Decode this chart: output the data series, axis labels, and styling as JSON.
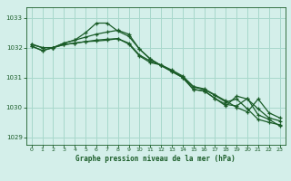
{
  "title": "Graphe pression niveau de la mer (hPa)",
  "bg_color": "#d4efea",
  "grid_color": "#a8d8cc",
  "line_color": "#1a5c28",
  "xlim": [
    -0.5,
    23.5
  ],
  "ylim": [
    1028.75,
    1033.35
  ],
  "yticks": [
    1029,
    1030,
    1031,
    1032,
    1033
  ],
  "xticks": [
    0,
    1,
    2,
    3,
    4,
    5,
    6,
    7,
    8,
    9,
    10,
    11,
    12,
    13,
    14,
    15,
    16,
    17,
    18,
    19,
    20,
    21,
    22,
    23
  ],
  "series": [
    {
      "x": [
        0,
        1,
        2,
        3,
        4,
        5,
        6,
        7,
        8,
        9,
        10,
        11,
        12,
        13,
        14,
        15,
        16,
        17,
        18,
        19,
        20,
        21,
        22,
        23
      ],
      "y": [
        1032.05,
        1031.9,
        1032.0,
        1032.15,
        1032.25,
        1032.5,
        1032.82,
        1032.82,
        1032.55,
        1032.38,
        1031.95,
        1031.62,
        1031.4,
        1031.2,
        1031.0,
        1030.6,
        1030.55,
        1030.3,
        1030.1,
        1030.05,
        1030.3,
        1029.75,
        1029.6,
        1029.38
      ]
    },
    {
      "x": [
        0,
        1,
        2,
        3,
        4,
        5,
        6,
        7,
        8,
        9,
        10,
        11,
        12,
        13,
        14,
        15,
        16,
        17,
        18,
        19,
        20,
        21,
        22,
        23
      ],
      "y": [
        1032.05,
        1031.9,
        1032.0,
        1032.15,
        1032.25,
        1032.35,
        1032.45,
        1032.52,
        1032.58,
        1032.45,
        1031.95,
        1031.62,
        1031.4,
        1031.2,
        1031.0,
        1030.6,
        1030.55,
        1030.3,
        1030.05,
        1030.38,
        1030.28,
        1029.95,
        1029.65,
        1029.55
      ]
    },
    {
      "x": [
        0,
        1,
        2,
        3,
        4,
        5,
        6,
        7,
        8,
        9,
        10,
        11,
        12,
        13,
        14,
        15,
        16,
        17,
        18,
        19,
        20,
        21,
        22,
        23
      ],
      "y": [
        1032.1,
        1032.0,
        1032.0,
        1032.1,
        1032.15,
        1032.2,
        1032.25,
        1032.28,
        1032.3,
        1032.15,
        1031.75,
        1031.55,
        1031.42,
        1031.25,
        1031.05,
        1030.7,
        1030.62,
        1030.42,
        1030.22,
        1030.0,
        1029.85,
        1030.28,
        1029.82,
        1029.65
      ]
    },
    {
      "x": [
        0,
        1,
        2,
        3,
        4,
        5,
        6,
        7,
        8,
        9,
        10,
        11,
        12,
        13,
        14,
        15,
        16,
        17,
        18,
        19,
        20,
        21,
        22,
        23
      ],
      "y": [
        1032.12,
        1032.0,
        1032.0,
        1032.1,
        1032.15,
        1032.2,
        1032.22,
        1032.25,
        1032.3,
        1032.12,
        1031.72,
        1031.5,
        1031.42,
        1031.22,
        1031.02,
        1030.68,
        1030.6,
        1030.4,
        1030.18,
        1030.28,
        1029.95,
        1029.6,
        1029.5,
        1029.42
      ]
    }
  ]
}
